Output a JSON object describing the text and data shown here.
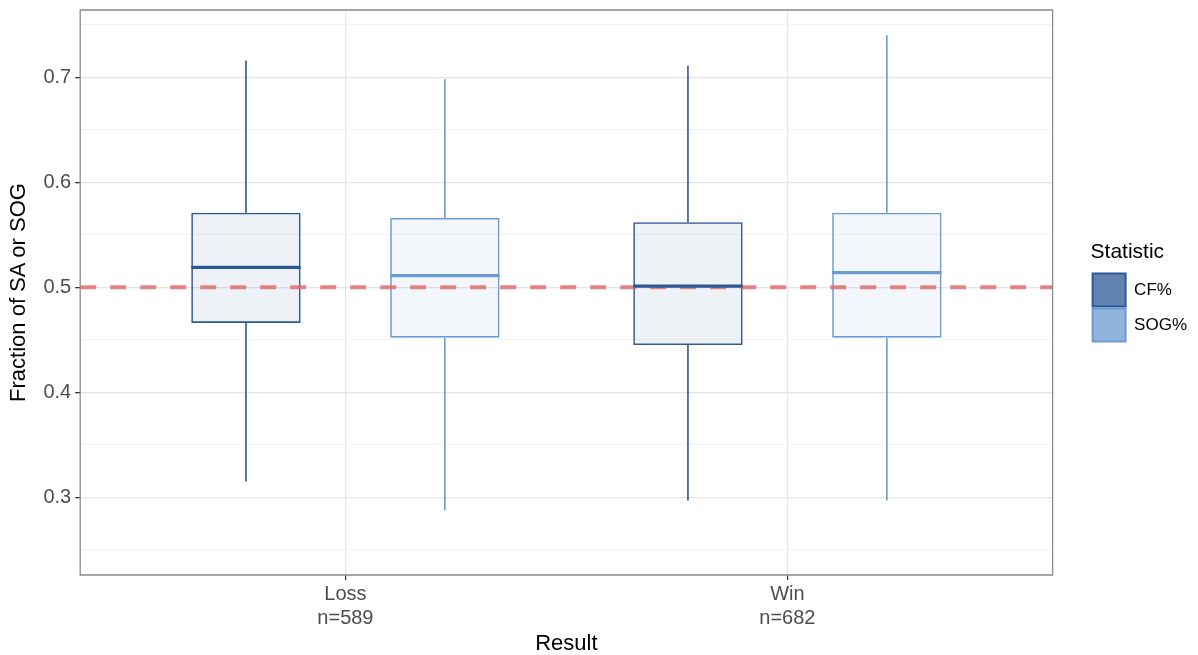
{
  "chart_data": {
    "type": "box",
    "categories": [
      "Loss\nn=589",
      "Win\nn=682"
    ],
    "series": [
      {
        "name": "CF%",
        "color": "#2c5896",
        "boxes": [
          {
            "low": 0.315,
            "q1": 0.466,
            "median": 0.519,
            "q3": 0.571,
            "high": 0.716
          },
          {
            "low": 0.297,
            "q1": 0.445,
            "median": 0.501,
            "q3": 0.562,
            "high": 0.711
          }
        ]
      },
      {
        "name": "SOG%",
        "color": "#6b9bd2",
        "boxes": [
          {
            "low": 0.288,
            "q1": 0.452,
            "median": 0.511,
            "q3": 0.566,
            "high": 0.698
          },
          {
            "low": 0.297,
            "q1": 0.452,
            "median": 0.514,
            "q3": 0.571,
            "high": 0.74
          }
        ]
      }
    ],
    "xlabel": "Result",
    "ylabel": "Fraction of SA or SOG",
    "legend_title": "Statistic",
    "legend": "right",
    "ylim": [
      0.226,
      0.764
    ],
    "yticks": [
      {
        "value": 0.25,
        "label": null
      },
      0.3,
      {
        "value": 0.35,
        "label": null
      },
      0.4,
      {
        "value": 0.45,
        "label": null
      },
      0.5,
      {
        "value": 0.55,
        "label": null
      },
      0.6,
      {
        "value": 0.65,
        "label": null
      },
      0.7,
      {
        "value": 0.75,
        "label": null
      }
    ],
    "grid": true,
    "ref_lines": [
      {
        "axis": "y",
        "value": 0.5,
        "color": "#e06666",
        "line_style": "dashed"
      }
    ]
  }
}
